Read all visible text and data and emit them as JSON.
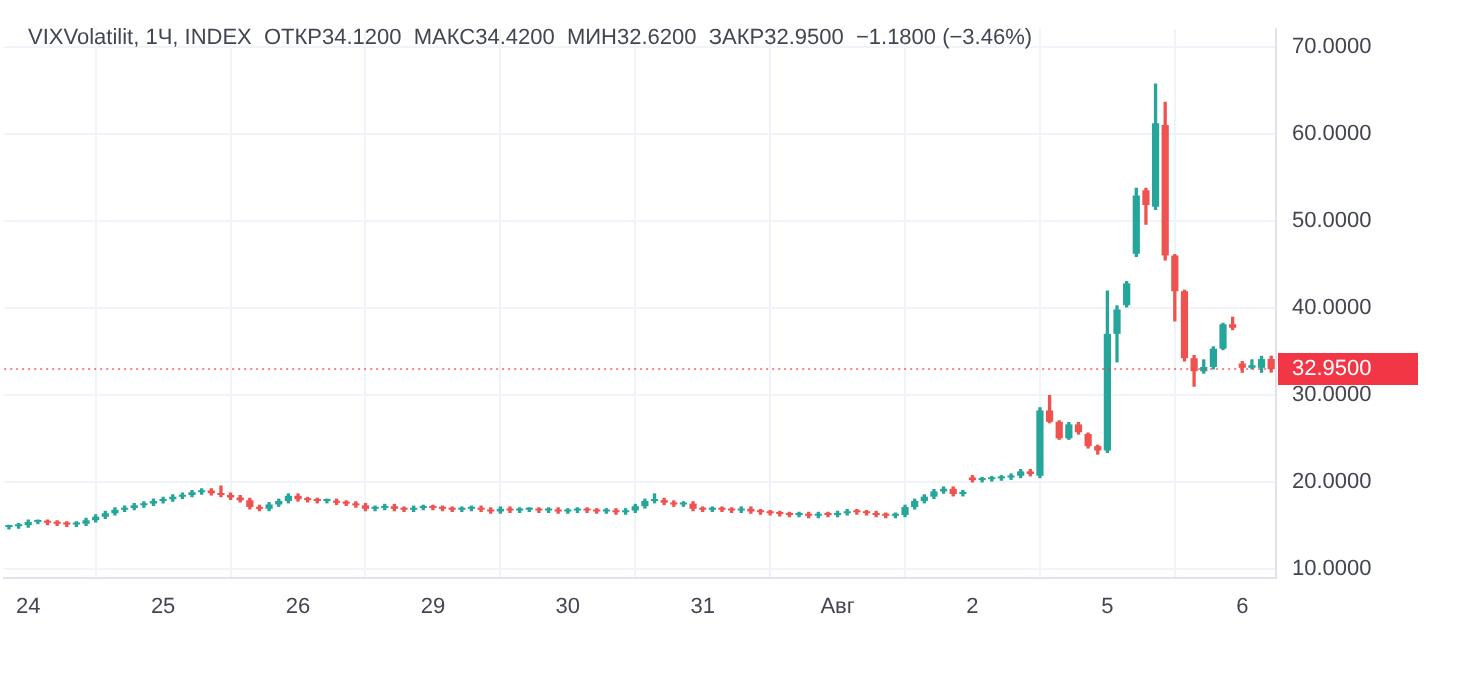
{
  "chart_data": {
    "type": "candlestick",
    "title": "VIXVolatilit, 1Ч, INDEX  ОТКР34.1200  МАКС34.4200  МИН32.6200  ЗАКР32.9500  −1.1800 (−3.46%)",
    "categories": [
      null,
      null,
      "24",
      null,
      null,
      null,
      null,
      null,
      null,
      null,
      null,
      null,
      null,
      null,
      null,
      null,
      "25",
      null,
      null,
      null,
      null,
      null,
      null,
      null,
      null,
      null,
      null,
      null,
      null,
      null,
      "26",
      null,
      null,
      null,
      null,
      null,
      null,
      null,
      null,
      null,
      null,
      null,
      null,
      null,
      "29",
      null,
      null,
      null,
      null,
      null,
      null,
      null,
      null,
      null,
      null,
      null,
      null,
      null,
      "30",
      null,
      null,
      null,
      null,
      null,
      null,
      null,
      null,
      null,
      null,
      null,
      null,
      null,
      "31",
      null,
      null,
      null,
      null,
      null,
      null,
      null,
      null,
      null,
      null,
      null,
      null,
      null,
      "Авг",
      null,
      null,
      null,
      null,
      null,
      null,
      null,
      null,
      null,
      null,
      null,
      null,
      null,
      "2",
      null,
      null,
      null,
      null,
      null,
      null,
      null,
      null,
      null,
      null,
      null,
      null,
      null,
      "5",
      null,
      null,
      null,
      null,
      null,
      null,
      null,
      null,
      null,
      null,
      null,
      null,
      null,
      "6",
      null,
      null,
      null
    ],
    "ohlc": [
      [
        14.8,
        15.0,
        14.6,
        14.9
      ],
      [
        14.9,
        15.2,
        14.7,
        15.0
      ],
      [
        15.0,
        15.6,
        14.8,
        15.4
      ],
      [
        15.4,
        15.6,
        15.2,
        15.4
      ],
      [
        15.4,
        15.6,
        15.1,
        15.3
      ],
      [
        15.3,
        15.5,
        15.0,
        15.2
      ],
      [
        15.2,
        15.4,
        14.9,
        15.1
      ],
      [
        15.1,
        15.4,
        14.9,
        15.2
      ],
      [
        15.2,
        15.8,
        15.0,
        15.6
      ],
      [
        15.6,
        16.2,
        15.4,
        16.0
      ],
      [
        16.0,
        16.6,
        15.8,
        16.4
      ],
      [
        16.4,
        17.0,
        16.2,
        16.8
      ],
      [
        16.8,
        17.2,
        16.6,
        17.0
      ],
      [
        17.0,
        17.5,
        16.8,
        17.3
      ],
      [
        17.3,
        17.7,
        17.1,
        17.5
      ],
      [
        17.5,
        18.0,
        17.3,
        17.8
      ],
      [
        17.8,
        18.2,
        17.6,
        18.0
      ],
      [
        18.0,
        18.5,
        17.8,
        18.3
      ],
      [
        18.3,
        18.7,
        18.1,
        18.5
      ],
      [
        18.5,
        19.0,
        18.3,
        18.8
      ],
      [
        18.8,
        19.2,
        18.6,
        19.0
      ],
      [
        19.0,
        19.2,
        18.5,
        18.7
      ],
      [
        18.7,
        19.5,
        18.3,
        18.5
      ],
      [
        18.5,
        18.7,
        18.0,
        18.2
      ],
      [
        18.2,
        18.4,
        17.7,
        17.9
      ],
      [
        17.9,
        18.1,
        16.9,
        17.1
      ],
      [
        17.1,
        17.3,
        16.7,
        16.9
      ],
      [
        16.9,
        17.6,
        16.7,
        17.4
      ],
      [
        17.4,
        18.0,
        17.2,
        17.8
      ],
      [
        17.8,
        18.6,
        17.6,
        18.4
      ],
      [
        18.4,
        18.6,
        17.8,
        18.0
      ],
      [
        18.0,
        18.2,
        17.7,
        17.9
      ],
      [
        17.9,
        18.1,
        17.6,
        17.8
      ],
      [
        17.8,
        18.0,
        17.6,
        17.8
      ],
      [
        17.8,
        18.0,
        17.4,
        17.6
      ],
      [
        17.6,
        17.8,
        17.3,
        17.5
      ],
      [
        17.5,
        17.7,
        17.1,
        17.3
      ],
      [
        17.3,
        17.5,
        16.7,
        16.9
      ],
      [
        16.9,
        17.2,
        16.7,
        17.0
      ],
      [
        17.0,
        17.4,
        16.8,
        17.2
      ],
      [
        17.2,
        17.4,
        16.7,
        16.9
      ],
      [
        16.9,
        17.1,
        16.6,
        16.8
      ],
      [
        16.8,
        17.2,
        16.6,
        17.0
      ],
      [
        17.0,
        17.3,
        16.8,
        17.1
      ],
      [
        17.1,
        17.3,
        16.8,
        17.0
      ],
      [
        17.0,
        17.2,
        16.7,
        16.9
      ],
      [
        16.9,
        17.1,
        16.6,
        16.8
      ],
      [
        16.8,
        17.1,
        16.6,
        16.9
      ],
      [
        16.9,
        17.2,
        16.7,
        17.0
      ],
      [
        17.0,
        17.2,
        16.6,
        16.8
      ],
      [
        16.8,
        17.0,
        16.4,
        16.6
      ],
      [
        16.6,
        17.1,
        16.4,
        16.9
      ],
      [
        16.9,
        17.1,
        16.5,
        16.7
      ],
      [
        16.7,
        17.0,
        16.5,
        16.8
      ],
      [
        16.8,
        17.0,
        16.6,
        16.8
      ],
      [
        16.8,
        17.0,
        16.5,
        16.7
      ],
      [
        16.7,
        17.0,
        16.5,
        16.8
      ],
      [
        16.8,
        17.0,
        16.4,
        16.6
      ],
      [
        16.6,
        16.9,
        16.4,
        16.7
      ],
      [
        16.7,
        17.0,
        16.5,
        16.8
      ],
      [
        16.8,
        17.0,
        16.5,
        16.7
      ],
      [
        16.7,
        16.9,
        16.4,
        16.6
      ],
      [
        16.6,
        16.9,
        16.4,
        16.7
      ],
      [
        16.7,
        16.9,
        16.3,
        16.5
      ],
      [
        16.5,
        16.9,
        16.3,
        16.7
      ],
      [
        16.7,
        17.4,
        16.5,
        17.2
      ],
      [
        17.2,
        18.0,
        17.0,
        17.8
      ],
      [
        17.8,
        18.6,
        17.6,
        17.9
      ],
      [
        17.9,
        18.1,
        17.4,
        17.6
      ],
      [
        17.6,
        17.8,
        17.2,
        17.4
      ],
      [
        17.4,
        17.7,
        17.2,
        17.5
      ],
      [
        17.5,
        17.7,
        16.7,
        16.9
      ],
      [
        16.9,
        17.1,
        16.6,
        16.8
      ],
      [
        16.8,
        17.1,
        16.6,
        16.9
      ],
      [
        16.9,
        17.1,
        16.6,
        16.8
      ],
      [
        16.8,
        17.0,
        16.5,
        16.7
      ],
      [
        16.7,
        17.1,
        16.5,
        16.9
      ],
      [
        16.9,
        17.1,
        16.4,
        16.6
      ],
      [
        16.6,
        16.8,
        16.3,
        16.5
      ],
      [
        16.5,
        16.7,
        16.2,
        16.4
      ],
      [
        16.4,
        16.6,
        16.1,
        16.3
      ],
      [
        16.3,
        16.5,
        16.0,
        16.2
      ],
      [
        16.2,
        16.5,
        16.0,
        16.3
      ],
      [
        16.3,
        16.5,
        15.9,
        16.1
      ],
      [
        16.1,
        16.5,
        15.9,
        16.3
      ],
      [
        16.3,
        16.5,
        16.0,
        16.2
      ],
      [
        16.2,
        16.6,
        16.0,
        16.4
      ],
      [
        16.4,
        16.8,
        16.2,
        16.6
      ],
      [
        16.6,
        16.8,
        16.3,
        16.5
      ],
      [
        16.5,
        16.7,
        16.2,
        16.4
      ],
      [
        16.4,
        16.6,
        16.0,
        16.2
      ],
      [
        16.2,
        16.4,
        15.9,
        16.1
      ],
      [
        16.1,
        16.4,
        15.9,
        16.2
      ],
      [
        16.2,
        17.3,
        16.0,
        17.1
      ],
      [
        17.1,
        18.0,
        16.9,
        17.8
      ],
      [
        17.8,
        18.5,
        17.6,
        18.3
      ],
      [
        18.3,
        19.1,
        18.1,
        18.9
      ],
      [
        18.9,
        19.4,
        18.7,
        19.2
      ],
      [
        19.2,
        19.4,
        18.4,
        18.6
      ],
      [
        18.6,
        19.0,
        18.4,
        18.8
      ],
      [
        20.5,
        20.7,
        20.0,
        20.2
      ],
      [
        20.2,
        20.5,
        20.0,
        20.3
      ],
      [
        20.3,
        20.6,
        20.1,
        20.4
      ],
      [
        20.4,
        20.7,
        20.2,
        20.5
      ],
      [
        20.5,
        20.9,
        20.3,
        20.7
      ],
      [
        20.7,
        21.4,
        20.5,
        21.2
      ],
      [
        21.2,
        21.4,
        20.7,
        20.9
      ],
      [
        20.7,
        28.5,
        20.5,
        28.2
      ],
      [
        28.2,
        29.9,
        26.8,
        26.9
      ],
      [
        26.9,
        27.0,
        24.9,
        25.0
      ],
      [
        25.0,
        26.8,
        24.9,
        26.6
      ],
      [
        26.6,
        26.8,
        25.5,
        25.7
      ],
      [
        25.5,
        25.6,
        23.9,
        24.1
      ],
      [
        24.1,
        24.2,
        23.2,
        23.6
      ],
      [
        23.6,
        41.9,
        23.4,
        37.0
      ],
      [
        37.0,
        40.2,
        33.8,
        39.8
      ],
      [
        40.3,
        43.0,
        40.1,
        42.8
      ],
      [
        46.2,
        53.7,
        45.9,
        52.9
      ],
      [
        53.5,
        53.7,
        49.6,
        51.8
      ],
      [
        51.6,
        65.7,
        51.3,
        61.2
      ],
      [
        61.0,
        63.6,
        45.5,
        46.0
      ],
      [
        46.0,
        46.1,
        38.5,
        41.9
      ],
      [
        41.9,
        42.0,
        33.9,
        34.2
      ],
      [
        34.2,
        34.5,
        31.0,
        32.7
      ],
      [
        32.7,
        34.0,
        32.5,
        33.2
      ],
      [
        33.2,
        35.5,
        33.0,
        35.3
      ],
      [
        35.3,
        38.2,
        35.2,
        38.1
      ],
      [
        38.1,
        38.9,
        37.5,
        37.7
      ],
      [
        33.6,
        33.8,
        32.6,
        33.1
      ],
      [
        33.1,
        34.0,
        33.0,
        33.4
      ],
      [
        33.1,
        34.4,
        32.6,
        34.1
      ],
      [
        34.12,
        34.42,
        32.62,
        32.95
      ]
    ],
    "ylim": [
      9,
      72
    ],
    "yticks": [
      {
        "value": 10,
        "label": "10.0000"
      },
      {
        "value": 20,
        "label": "20.0000"
      },
      {
        "value": 30,
        "label": "30.0000"
      },
      {
        "value": 40,
        "label": "40.0000"
      },
      {
        "value": 50,
        "label": "50.0000"
      },
      {
        "value": 60,
        "label": "60.0000"
      },
      {
        "value": 70,
        "label": "70.0000"
      }
    ],
    "ref_lines": [
      {
        "axis": "y",
        "value": 32.95,
        "label": "32.9500",
        "color": "#f23645",
        "line_style": "dotted"
      }
    ],
    "grid": true,
    "legend": false
  }
}
